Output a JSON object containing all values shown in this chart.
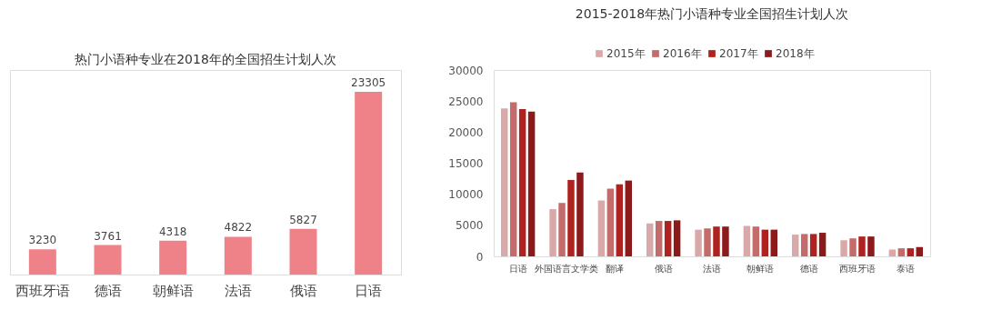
{
  "chart_data": [
    {
      "type": "bar",
      "title": "热门小语种专业在2018年的全国招生计划人次",
      "categories": [
        "西班牙语",
        "德语",
        "朝鲜语",
        "法语",
        "俄语",
        "日语"
      ],
      "values": [
        3230,
        3761,
        4318,
        4822,
        5827,
        23305
      ],
      "color": "#ef8288",
      "data_labels": true,
      "tick_labels": "x",
      "grid": false
    },
    {
      "type": "bar",
      "title": "2015-2018年热门小语种专业全国招生计划人次",
      "categories": [
        "日语",
        "外国语言文学类",
        "翻译",
        "俄语",
        "法语",
        "朝鲜语",
        "德语",
        "西班牙语",
        "泰语"
      ],
      "series": [
        {
          "name": "2015年",
          "color": "#d9a9aa",
          "values": [
            23800,
            7600,
            9000,
            5300,
            4300,
            4900,
            3500,
            2600,
            1100
          ]
        },
        {
          "name": "2016年",
          "color": "#c46b6b",
          "values": [
            24800,
            8600,
            10900,
            5700,
            4500,
            4800,
            3600,
            2900,
            1300
          ]
        },
        {
          "name": "2017年",
          "color": "#b0221f",
          "values": [
            23700,
            12300,
            11600,
            5700,
            4800,
            4300,
            3600,
            3200,
            1300
          ]
        },
        {
          "name": "2018年",
          "color": "#8c1a1a",
          "values": [
            23300,
            13500,
            12200,
            5800,
            4800,
            4300,
            3800,
            3200,
            1500
          ]
        }
      ],
      "ylim": [
        0,
        30000
      ],
      "yticks": [
        0,
        5000,
        10000,
        15000,
        20000,
        25000,
        30000
      ],
      "grid": false,
      "legend": "top"
    }
  ]
}
